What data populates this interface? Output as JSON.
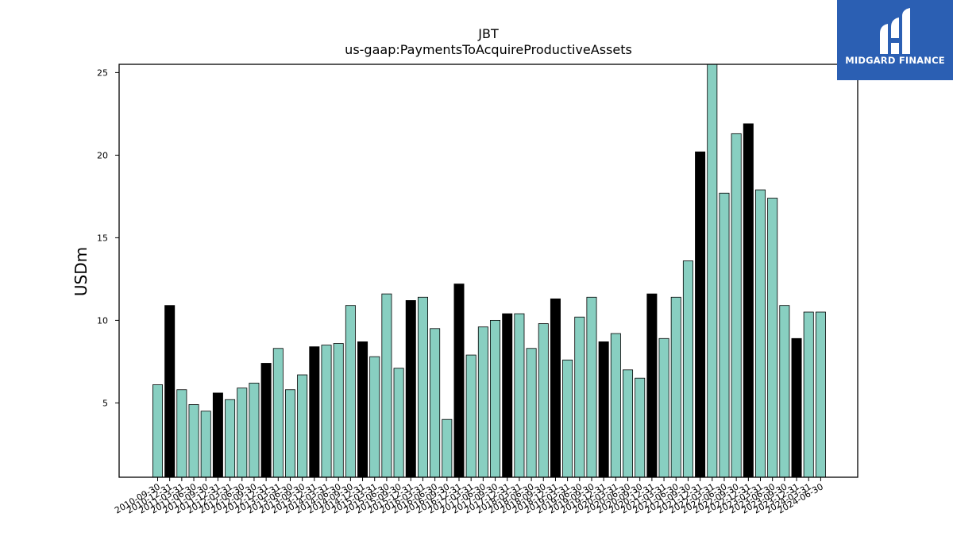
{
  "chart_data": {
    "type": "bar",
    "title": "JBT",
    "subtitle": "us-gaap:PaymentsToAcquireProductiveAssets",
    "ylabel": "USDm",
    "xlabel": "",
    "ylim": [
      0.5,
      25.5
    ],
    "yticks": [
      5,
      10,
      15,
      20,
      25
    ],
    "grid": false,
    "legend": "none",
    "categories": [
      "2010-09-30",
      "2010-12-31",
      "2011-03-31",
      "2011-06-30",
      "2011-09-30",
      "2011-12-31",
      "2012-03-31",
      "2012-06-30",
      "2012-09-30",
      "2012-12-31",
      "2013-03-31",
      "2013-06-30",
      "2013-09-30",
      "2013-12-31",
      "2014-03-31",
      "2014-06-30",
      "2014-09-30",
      "2014-12-31",
      "2015-03-31",
      "2015-06-30",
      "2015-09-30",
      "2015-12-31",
      "2016-03-31",
      "2016-06-30",
      "2016-09-30",
      "2016-12-31",
      "2017-03-31",
      "2017-06-30",
      "2017-09-30",
      "2017-12-31",
      "2018-03-31",
      "2018-06-30",
      "2018-09-30",
      "2018-12-31",
      "2019-03-31",
      "2019-06-30",
      "2019-09-30",
      "2019-12-31",
      "2020-03-31",
      "2020-06-30",
      "2020-09-30",
      "2020-12-31",
      "2021-03-31",
      "2021-06-30",
      "2021-09-30",
      "2021-12-31",
      "2022-03-31",
      "2022-06-30",
      "2022-09-30",
      "2022-12-31",
      "2023-03-31",
      "2023-06-30",
      "2023-09-30",
      "2023-12-31",
      "2024-03-31",
      "2024-06-30"
    ],
    "values": [
      6.1,
      10.9,
      5.8,
      4.9,
      4.5,
      5.6,
      5.2,
      5.9,
      6.2,
      7.4,
      8.3,
      5.8,
      6.7,
      8.4,
      8.5,
      8.6,
      10.9,
      8.7,
      7.8,
      11.6,
      7.1,
      11.2,
      11.4,
      9.5,
      4.0,
      12.2,
      7.9,
      9.6,
      10.0,
      10.4,
      10.4,
      8.3,
      9.8,
      11.3,
      7.6,
      10.2,
      11.4,
      8.7,
      9.2,
      7.0,
      6.5,
      11.6,
      8.9,
      11.4,
      13.6,
      20.2,
      25.6,
      17.7,
      21.3,
      21.9,
      17.9,
      17.4,
      10.9,
      8.9,
      10.5,
      10.5
    ],
    "highlight_positions": [
      1,
      5,
      9,
      13,
      17,
      21,
      25,
      29,
      33,
      37,
      41,
      45,
      49,
      53
    ],
    "colors": {
      "bar": "#88cfc1",
      "highlight": "#000000",
      "edge": "#000000"
    }
  },
  "brand": {
    "name": "MIDGARD FINANCE",
    "background": "#2b5fb3",
    "icon": "midgard-logo-icon"
  }
}
